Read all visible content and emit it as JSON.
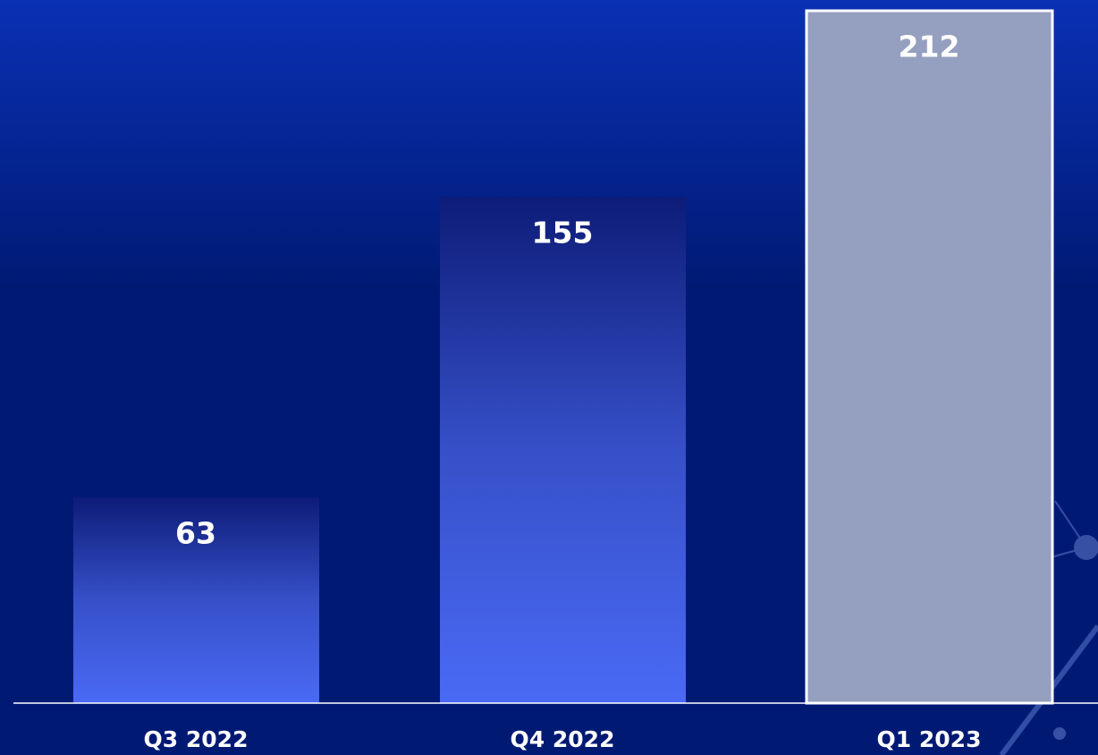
{
  "chart_data": {
    "type": "bar",
    "categories": [
      "Q3 2022",
      "Q4 2022",
      "Q1 2023"
    ],
    "values": [
      63,
      155,
      212
    ],
    "colors": [
      "#4a6af5",
      "#4a6af5",
      "#95a0c0"
    ],
    "highlight": [
      false,
      false,
      true
    ]
  }
}
